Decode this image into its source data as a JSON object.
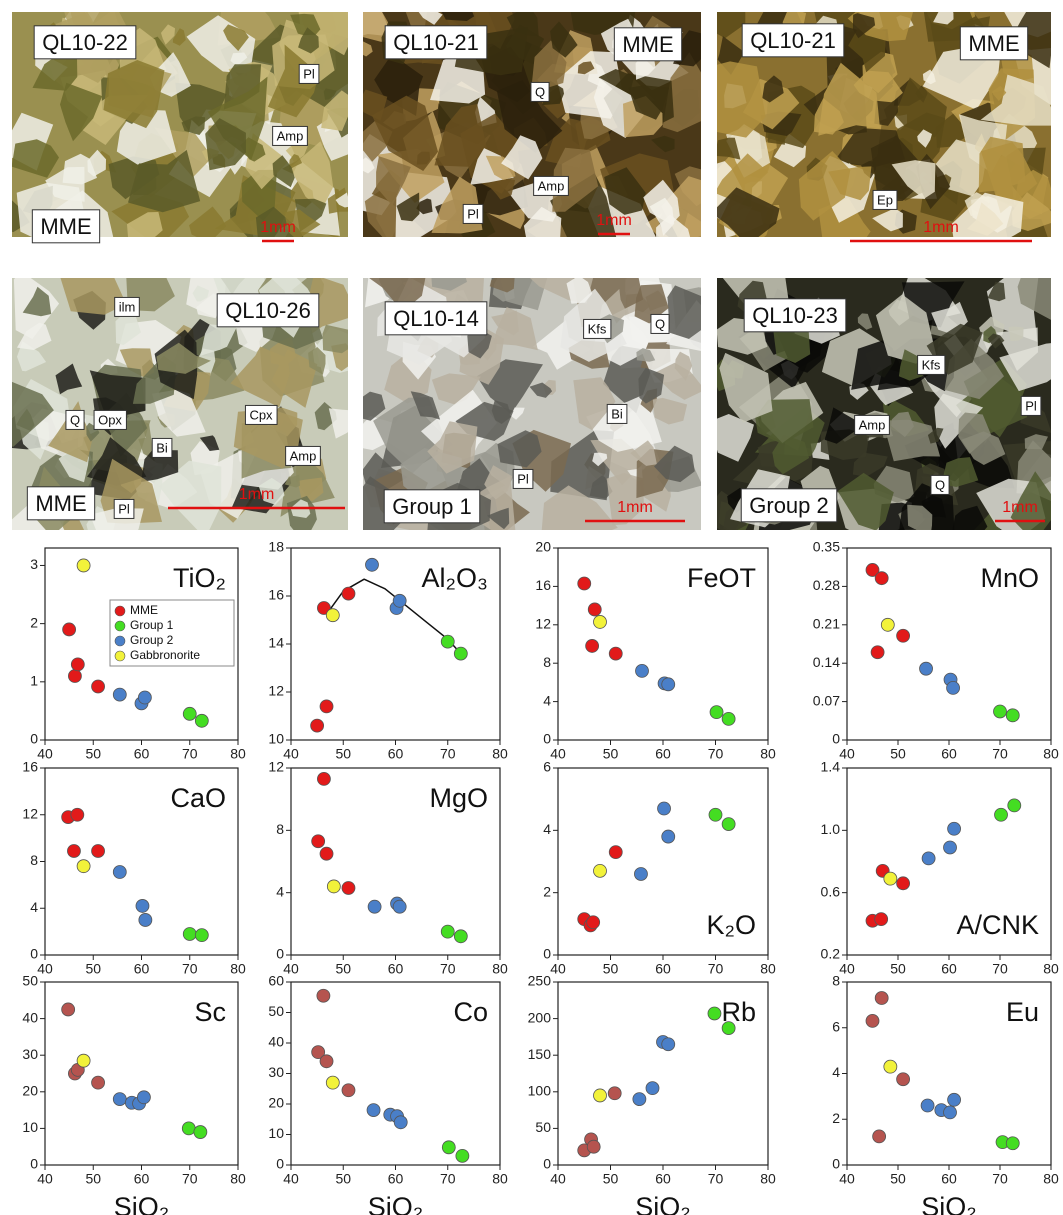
{
  "photos": [
    {
      "labels": [
        "QL10-22",
        "Pl",
        "Amp",
        "MME"
      ],
      "scale": "1mm"
    },
    {
      "labels": [
        "QL10-21",
        "MME",
        "Q",
        "Amp",
        "Pl"
      ],
      "scale": "1mm"
    },
    {
      "labels": [
        "QL10-21",
        "MME",
        "Ep"
      ],
      "scale": "1mm"
    },
    {
      "labels": [
        "ilm",
        "QL10-26",
        "Q",
        "Opx",
        "Cpx",
        "Bi",
        "Amp",
        "MME",
        "Pl"
      ],
      "scale": "1mm"
    },
    {
      "labels": [
        "QL10-14",
        "Kfs",
        "Q",
        "Bi",
        "Pl",
        "Group 1"
      ],
      "scale": "1mm"
    },
    {
      "labels": [
        "QL10-23",
        "Kfs",
        "Pl",
        "Amp",
        "Q",
        "Group 2"
      ],
      "scale": "1mm"
    }
  ],
  "chart_data": [
    {
      "type": "scatter",
      "title": "TiO₂",
      "title_corner": "upper right",
      "legend": "upper right",
      "xlim": [
        40,
        80
      ],
      "xticks": [
        40,
        50,
        60,
        70,
        80
      ],
      "ylim": [
        0,
        3.3
      ],
      "yticks": [
        0,
        1,
        2,
        3
      ],
      "series": [
        {
          "name": "MME",
          "color": "#e21a1a",
          "x": [
            45,
            46.2,
            46.8,
            51
          ],
          "values": [
            1.9,
            1.1,
            1.3,
            0.92
          ]
        },
        {
          "name": "Group 1",
          "color": "#44dd22",
          "x": [
            70,
            72.5
          ],
          "values": [
            0.45,
            0.33
          ]
        },
        {
          "name": "Group 2",
          "color": "#4a7fc8",
          "x": [
            55.5,
            60,
            60.7
          ],
          "values": [
            0.78,
            0.63,
            0.73
          ]
        },
        {
          "name": "Gabbronorite",
          "color": "#f2f23a",
          "x": [
            48
          ],
          "values": [
            3.0
          ]
        }
      ]
    },
    {
      "type": "scatter",
      "title": "Al₂O₃",
      "title_corner": "upper right",
      "xlim": [
        40,
        80
      ],
      "xticks": [
        40,
        50,
        60,
        70,
        80
      ],
      "ylim": [
        10,
        18
      ],
      "yticks": [
        10,
        12,
        14,
        16,
        18
      ],
      "trend": {
        "x": [
          47,
          50,
          54,
          58,
          62,
          66,
          70,
          72.5
        ],
        "y": [
          15.3,
          16.2,
          16.7,
          16.3,
          15.6,
          14.9,
          14.2,
          13.6
        ]
      },
      "series": [
        {
          "color": "#e21a1a",
          "x": [
            45,
            46.3,
            46.8,
            51
          ],
          "values": [
            10.6,
            15.5,
            11.4,
            16.1
          ]
        },
        {
          "color": "#44dd22",
          "x": [
            70,
            72.5
          ],
          "values": [
            14.1,
            13.6
          ]
        },
        {
          "color": "#4a7fc8",
          "x": [
            55.5,
            60.2,
            60.8
          ],
          "values": [
            17.3,
            15.5,
            15.8
          ]
        },
        {
          "color": "#f2f23a",
          "x": [
            48
          ],
          "values": [
            15.2
          ]
        }
      ]
    },
    {
      "type": "scatter",
      "title": "FeOT",
      "title_corner": "upper right",
      "xlim": [
        40,
        80
      ],
      "xticks": [
        40,
        50,
        60,
        70,
        80
      ],
      "ylim": [
        0,
        20
      ],
      "yticks": [
        0,
        4,
        8,
        12,
        16,
        20
      ],
      "series": [
        {
          "color": "#e21a1a",
          "x": [
            45,
            46.5,
            47,
            51
          ],
          "values": [
            16.3,
            9.8,
            13.6,
            9.0
          ]
        },
        {
          "color": "#44dd22",
          "x": [
            70.2,
            72.5
          ],
          "values": [
            2.9,
            2.2
          ]
        },
        {
          "color": "#4a7fc8",
          "x": [
            56,
            60.3,
            61
          ],
          "values": [
            7.2,
            5.9,
            5.8
          ]
        },
        {
          "color": "#f2f23a",
          "x": [
            48
          ],
          "values": [
            12.3
          ]
        }
      ]
    },
    {
      "type": "scatter",
      "title": "MnO",
      "title_corner": "upper right",
      "xlim": [
        40,
        80
      ],
      "xticks": [
        40,
        50,
        60,
        70,
        80
      ],
      "ylim": [
        0,
        0.35
      ],
      "yticks": [
        0,
        0.07,
        0.14,
        0.21,
        0.28,
        0.35
      ],
      "series": [
        {
          "color": "#e21a1a",
          "x": [
            45,
            46,
            46.8,
            51
          ],
          "values": [
            0.31,
            0.16,
            0.295,
            0.19
          ]
        },
        {
          "color": "#44dd22",
          "x": [
            70,
            72.5
          ],
          "values": [
            0.052,
            0.045
          ]
        },
        {
          "color": "#4a7fc8",
          "x": [
            55.5,
            60.3,
            60.8
          ],
          "values": [
            0.13,
            0.11,
            0.095
          ]
        },
        {
          "color": "#f2f23a",
          "x": [
            48
          ],
          "values": [
            0.21
          ]
        }
      ]
    },
    {
      "type": "scatter",
      "title": "CaO",
      "title_corner": "upper right",
      "xlim": [
        40,
        80
      ],
      "xticks": [
        40,
        50,
        60,
        70,
        80
      ],
      "ylim": [
        0,
        16
      ],
      "yticks": [
        0,
        4,
        8,
        12,
        16
      ],
      "series": [
        {
          "color": "#e21a1a",
          "x": [
            44.8,
            46,
            46.7,
            51
          ],
          "values": [
            11.8,
            8.9,
            12.0,
            8.9
          ]
        },
        {
          "color": "#44dd22",
          "x": [
            70,
            72.5
          ],
          "values": [
            1.8,
            1.7
          ]
        },
        {
          "color": "#4a7fc8",
          "x": [
            55.5,
            60.2,
            60.8
          ],
          "values": [
            7.1,
            4.2,
            3.0
          ]
        },
        {
          "color": "#f2f23a",
          "x": [
            48
          ],
          "values": [
            7.6
          ]
        }
      ]
    },
    {
      "type": "scatter",
      "title": "MgO",
      "title_corner": "upper right",
      "xlim": [
        40,
        80
      ],
      "xticks": [
        40,
        50,
        60,
        70,
        80
      ],
      "ylim": [
        0,
        12
      ],
      "yticks": [
        0,
        4,
        8,
        12
      ],
      "series": [
        {
          "color": "#e21a1a",
          "x": [
            45.2,
            46.3,
            46.8,
            51
          ],
          "values": [
            7.3,
            11.3,
            6.5,
            4.3
          ]
        },
        {
          "color": "#44dd22",
          "x": [
            70,
            72.5
          ],
          "values": [
            1.5,
            1.2
          ]
        },
        {
          "color": "#4a7fc8",
          "x": [
            56,
            60.3,
            60.8
          ],
          "values": [
            3.1,
            3.3,
            3.1
          ]
        },
        {
          "color": "#f2f23a",
          "x": [
            48.2
          ],
          "values": [
            4.4
          ]
        }
      ]
    },
    {
      "type": "scatter",
      "title": "K₂O",
      "title_corner": "lower right",
      "xlim": [
        40,
        80
      ],
      "xticks": [
        40,
        50,
        60,
        70,
        80
      ],
      "ylim": [
        0,
        6
      ],
      "yticks": [
        0,
        2,
        4,
        6
      ],
      "series": [
        {
          "color": "#e21a1a",
          "x": [
            45,
            46.2,
            46.7,
            51
          ],
          "values": [
            1.15,
            0.95,
            1.05,
            3.3
          ]
        },
        {
          "color": "#44dd22",
          "x": [
            70,
            72.5
          ],
          "values": [
            4.5,
            4.2
          ]
        },
        {
          "color": "#4a7fc8",
          "x": [
            55.8,
            60.2,
            61
          ],
          "values": [
            2.6,
            4.7,
            3.8
          ]
        },
        {
          "color": "#f2f23a",
          "x": [
            48
          ],
          "values": [
            2.7
          ]
        }
      ]
    },
    {
      "type": "scatter",
      "title": "A/CNK",
      "title_corner": "lower right",
      "xlim": [
        40,
        80
      ],
      "xticks": [
        40,
        50,
        60,
        70,
        80
      ],
      "ylim": [
        0.2,
        1.4
      ],
      "yticks": [
        0.2,
        0.6,
        {
          "value": 1,
          "label": "1.0"
        },
        1.4
      ],
      "series": [
        {
          "color": "#e21a1a",
          "x": [
            45,
            46.7,
            47,
            51
          ],
          "values": [
            0.42,
            0.43,
            0.74,
            0.66
          ]
        },
        {
          "color": "#44dd22",
          "x": [
            70.2,
            72.8
          ],
          "values": [
            1.1,
            1.16
          ]
        },
        {
          "color": "#4a7fc8",
          "x": [
            56,
            60.2,
            61
          ],
          "values": [
            0.82,
            0.89,
            1.01
          ]
        },
        {
          "color": "#f2f23a",
          "x": [
            48.5
          ],
          "values": [
            0.69
          ]
        }
      ]
    },
    {
      "type": "scatter",
      "title": "Sc",
      "title_corner": "upper right",
      "x_label": "SiO₂",
      "xlim": [
        40,
        80
      ],
      "xticks": [
        40,
        50,
        60,
        70,
        80
      ],
      "ylim": [
        0,
        50
      ],
      "yticks": [
        0,
        10,
        20,
        30,
        40,
        50
      ],
      "series": [
        {
          "color": "#b5544f",
          "x": [
            44.8,
            46.2,
            46.8,
            51
          ],
          "values": [
            42.5,
            25,
            26,
            22.5
          ]
        },
        {
          "color": "#44dd22",
          "x": [
            69.8,
            72.2
          ],
          "values": [
            10,
            9
          ]
        },
        {
          "color": "#4a7fc8",
          "x": [
            55.5,
            58,
            59.5,
            60.5
          ],
          "values": [
            18,
            17,
            16.8,
            18.5
          ]
        },
        {
          "color": "#f2f23a",
          "x": [
            48
          ],
          "values": [
            28.5
          ]
        }
      ]
    },
    {
      "type": "scatter",
      "title": "Co",
      "title_corner": "upper right",
      "x_label": "SiO₂",
      "xlim": [
        40,
        80
      ],
      "xticks": [
        40,
        50,
        60,
        70,
        80
      ],
      "ylim": [
        0,
        60
      ],
      "yticks": [
        0,
        10,
        20,
        30,
        40,
        50,
        60
      ],
      "series": [
        {
          "color": "#b5544f",
          "x": [
            45.2,
            46.2,
            46.8,
            51
          ],
          "values": [
            37,
            55.5,
            34,
            24.5
          ]
        },
        {
          "color": "#44dd22",
          "x": [
            70.2,
            72.8
          ],
          "values": [
            5.8,
            3
          ]
        },
        {
          "color": "#4a7fc8",
          "x": [
            55.8,
            59,
            60.3,
            61
          ],
          "values": [
            18,
            16.5,
            16,
            14
          ]
        },
        {
          "color": "#f2f23a",
          "x": [
            48
          ],
          "values": [
            27
          ]
        }
      ]
    },
    {
      "type": "scatter",
      "title": "Rb",
      "title_corner": "upper right",
      "x_label": "SiO₂",
      "xlim": [
        40,
        80
      ],
      "xticks": [
        40,
        50,
        60,
        70,
        80
      ],
      "ylim": [
        0,
        250
      ],
      "yticks": [
        0,
        50,
        100,
        150,
        200,
        250
      ],
      "series": [
        {
          "color": "#b5544f",
          "x": [
            45,
            46.3,
            46.8,
            50.8
          ],
          "values": [
            20,
            35,
            25,
            98
          ]
        },
        {
          "color": "#44dd22",
          "x": [
            69.8,
            72.5
          ],
          "values": [
            207,
            187
          ]
        },
        {
          "color": "#4a7fc8",
          "x": [
            55.5,
            58,
            60,
            61
          ],
          "values": [
            90,
            105,
            168,
            165
          ]
        },
        {
          "color": "#f2f23a",
          "x": [
            48
          ],
          "values": [
            95
          ]
        }
      ]
    },
    {
      "type": "scatter",
      "title": "Eu",
      "title_corner": "upper right",
      "x_label": "SiO₂",
      "xlim": [
        40,
        80
      ],
      "xticks": [
        40,
        50,
        60,
        70,
        80
      ],
      "ylim": [
        0,
        8
      ],
      "yticks": [
        0,
        2,
        4,
        6,
        8
      ],
      "series": [
        {
          "color": "#b5544f",
          "x": [
            45,
            46.3,
            46.8,
            51
          ],
          "values": [
            6.3,
            1.25,
            7.3,
            3.75
          ]
        },
        {
          "color": "#44dd22",
          "x": [
            70.5,
            72.5
          ],
          "values": [
            1.0,
            0.95
          ]
        },
        {
          "color": "#4a7fc8",
          "x": [
            55.8,
            58.5,
            60.2,
            61
          ],
          "values": [
            2.6,
            2.4,
            2.3,
            2.85
          ]
        },
        {
          "color": "#f2f23a",
          "x": [
            48.5
          ],
          "values": [
            4.3
          ]
        }
      ]
    }
  ]
}
